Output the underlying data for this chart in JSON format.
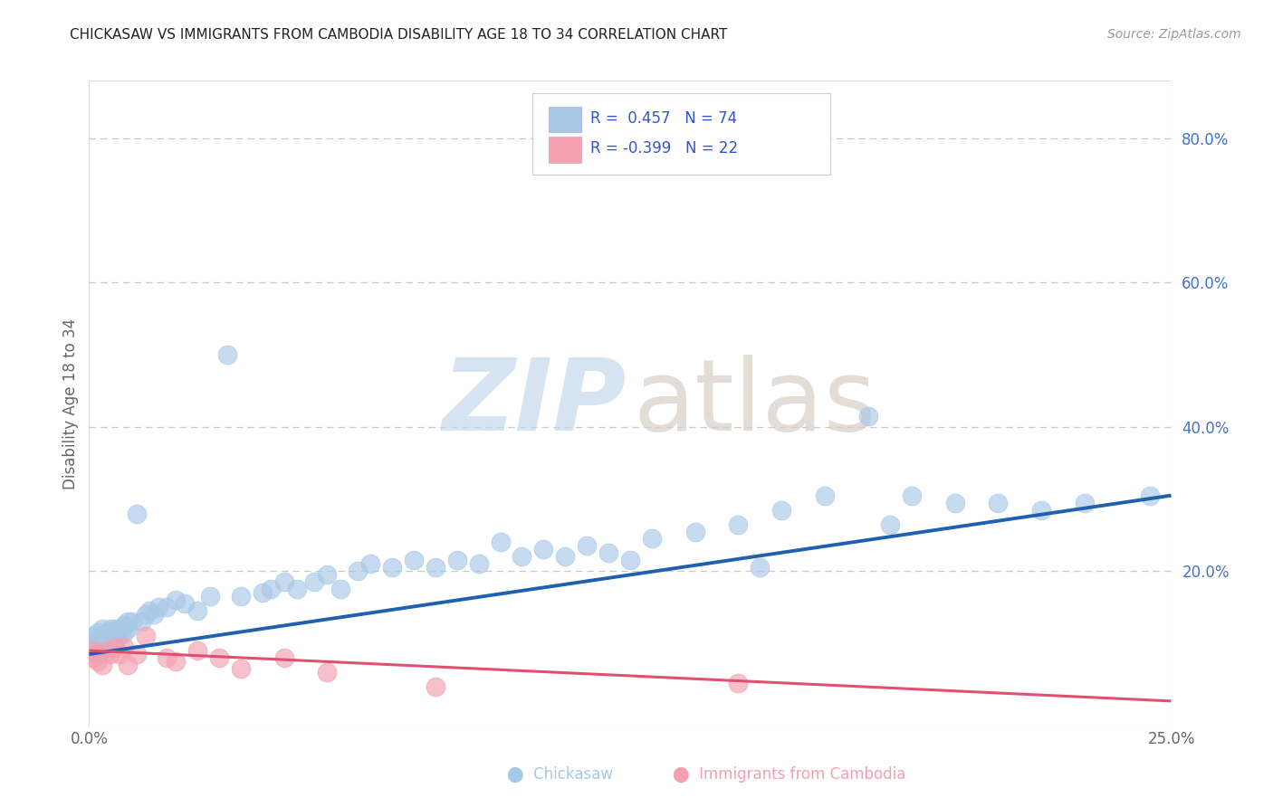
{
  "title": "CHICKASAW VS IMMIGRANTS FROM CAMBODIA DISABILITY AGE 18 TO 34 CORRELATION CHART",
  "source": "Source: ZipAtlas.com",
  "ylabel_label": "Disability Age 18 to 34",
  "xlim": [
    0.0,
    0.25
  ],
  "ylim": [
    -0.015,
    0.88
  ],
  "chickasaw_R": 0.457,
  "chickasaw_N": 74,
  "cambodia_R": -0.399,
  "cambodia_N": 22,
  "blue_scatter_color": "#a8c8e8",
  "blue_line_color": "#2060b0",
  "pink_scatter_color": "#f4a0b0",
  "pink_line_color": "#e05070",
  "legend_text_color": "#3355cc",
  "background_color": "#ffffff",
  "grid_color": "#c8c8c8",
  "right_tick_color": "#4472c4",
  "title_color": "#222222",
  "source_color": "#999999",
  "ylabel_color": "#666666",
  "xtick_color": "#666666",
  "blue_x": [
    0.001,
    0.001,
    0.001,
    0.002,
    0.002,
    0.002,
    0.002,
    0.003,
    0.003,
    0.003,
    0.004,
    0.004,
    0.004,
    0.005,
    0.005,
    0.005,
    0.006,
    0.006,
    0.006,
    0.007,
    0.007,
    0.008,
    0.008,
    0.009,
    0.009,
    0.01,
    0.011,
    0.012,
    0.013,
    0.014,
    0.015,
    0.016,
    0.018,
    0.02,
    0.022,
    0.025,
    0.028,
    0.032,
    0.035,
    0.04,
    0.042,
    0.045,
    0.048,
    0.052,
    0.055,
    0.058,
    0.062,
    0.065,
    0.07,
    0.075,
    0.08,
    0.085,
    0.09,
    0.095,
    0.1,
    0.105,
    0.11,
    0.115,
    0.12,
    0.125,
    0.13,
    0.14,
    0.15,
    0.155,
    0.16,
    0.17,
    0.18,
    0.185,
    0.19,
    0.2,
    0.21,
    0.22,
    0.23,
    0.245
  ],
  "blue_y": [
    0.095,
    0.105,
    0.11,
    0.09,
    0.1,
    0.105,
    0.115,
    0.1,
    0.11,
    0.12,
    0.095,
    0.105,
    0.115,
    0.1,
    0.11,
    0.12,
    0.105,
    0.115,
    0.12,
    0.11,
    0.12,
    0.115,
    0.125,
    0.12,
    0.13,
    0.13,
    0.28,
    0.13,
    0.14,
    0.145,
    0.14,
    0.15,
    0.15,
    0.16,
    0.155,
    0.145,
    0.165,
    0.5,
    0.165,
    0.17,
    0.175,
    0.185,
    0.175,
    0.185,
    0.195,
    0.175,
    0.2,
    0.21,
    0.205,
    0.215,
    0.205,
    0.215,
    0.21,
    0.24,
    0.22,
    0.23,
    0.22,
    0.235,
    0.225,
    0.215,
    0.245,
    0.255,
    0.265,
    0.205,
    0.285,
    0.305,
    0.415,
    0.265,
    0.305,
    0.295,
    0.295,
    0.285,
    0.295,
    0.305
  ],
  "pink_x": [
    0.001,
    0.001,
    0.002,
    0.002,
    0.003,
    0.004,
    0.005,
    0.006,
    0.007,
    0.008,
    0.009,
    0.011,
    0.013,
    0.018,
    0.02,
    0.025,
    0.03,
    0.035,
    0.045,
    0.055,
    0.08,
    0.15
  ],
  "pink_y": [
    0.08,
    0.09,
    0.075,
    0.085,
    0.07,
    0.09,
    0.085,
    0.095,
    0.085,
    0.095,
    0.07,
    0.085,
    0.11,
    0.08,
    0.075,
    0.09,
    0.08,
    0.065,
    0.08,
    0.06,
    0.04,
    0.045
  ],
  "blue_trendline_x0": 0.0,
  "blue_trendline_y0": 0.085,
  "blue_trendline_x1": 0.25,
  "blue_trendline_y1": 0.305,
  "pink_trendline_x0": 0.0,
  "pink_trendline_y0": 0.09,
  "pink_trendline_x1": 0.25,
  "pink_trendline_y1": 0.02,
  "legend_blue_label": "R =  0.457   N = 74",
  "legend_pink_label": "R = -0.399   N = 22",
  "bottom_legend_blue": "Chickasaw",
  "bottom_legend_pink": "Immigrants from Cambodia"
}
